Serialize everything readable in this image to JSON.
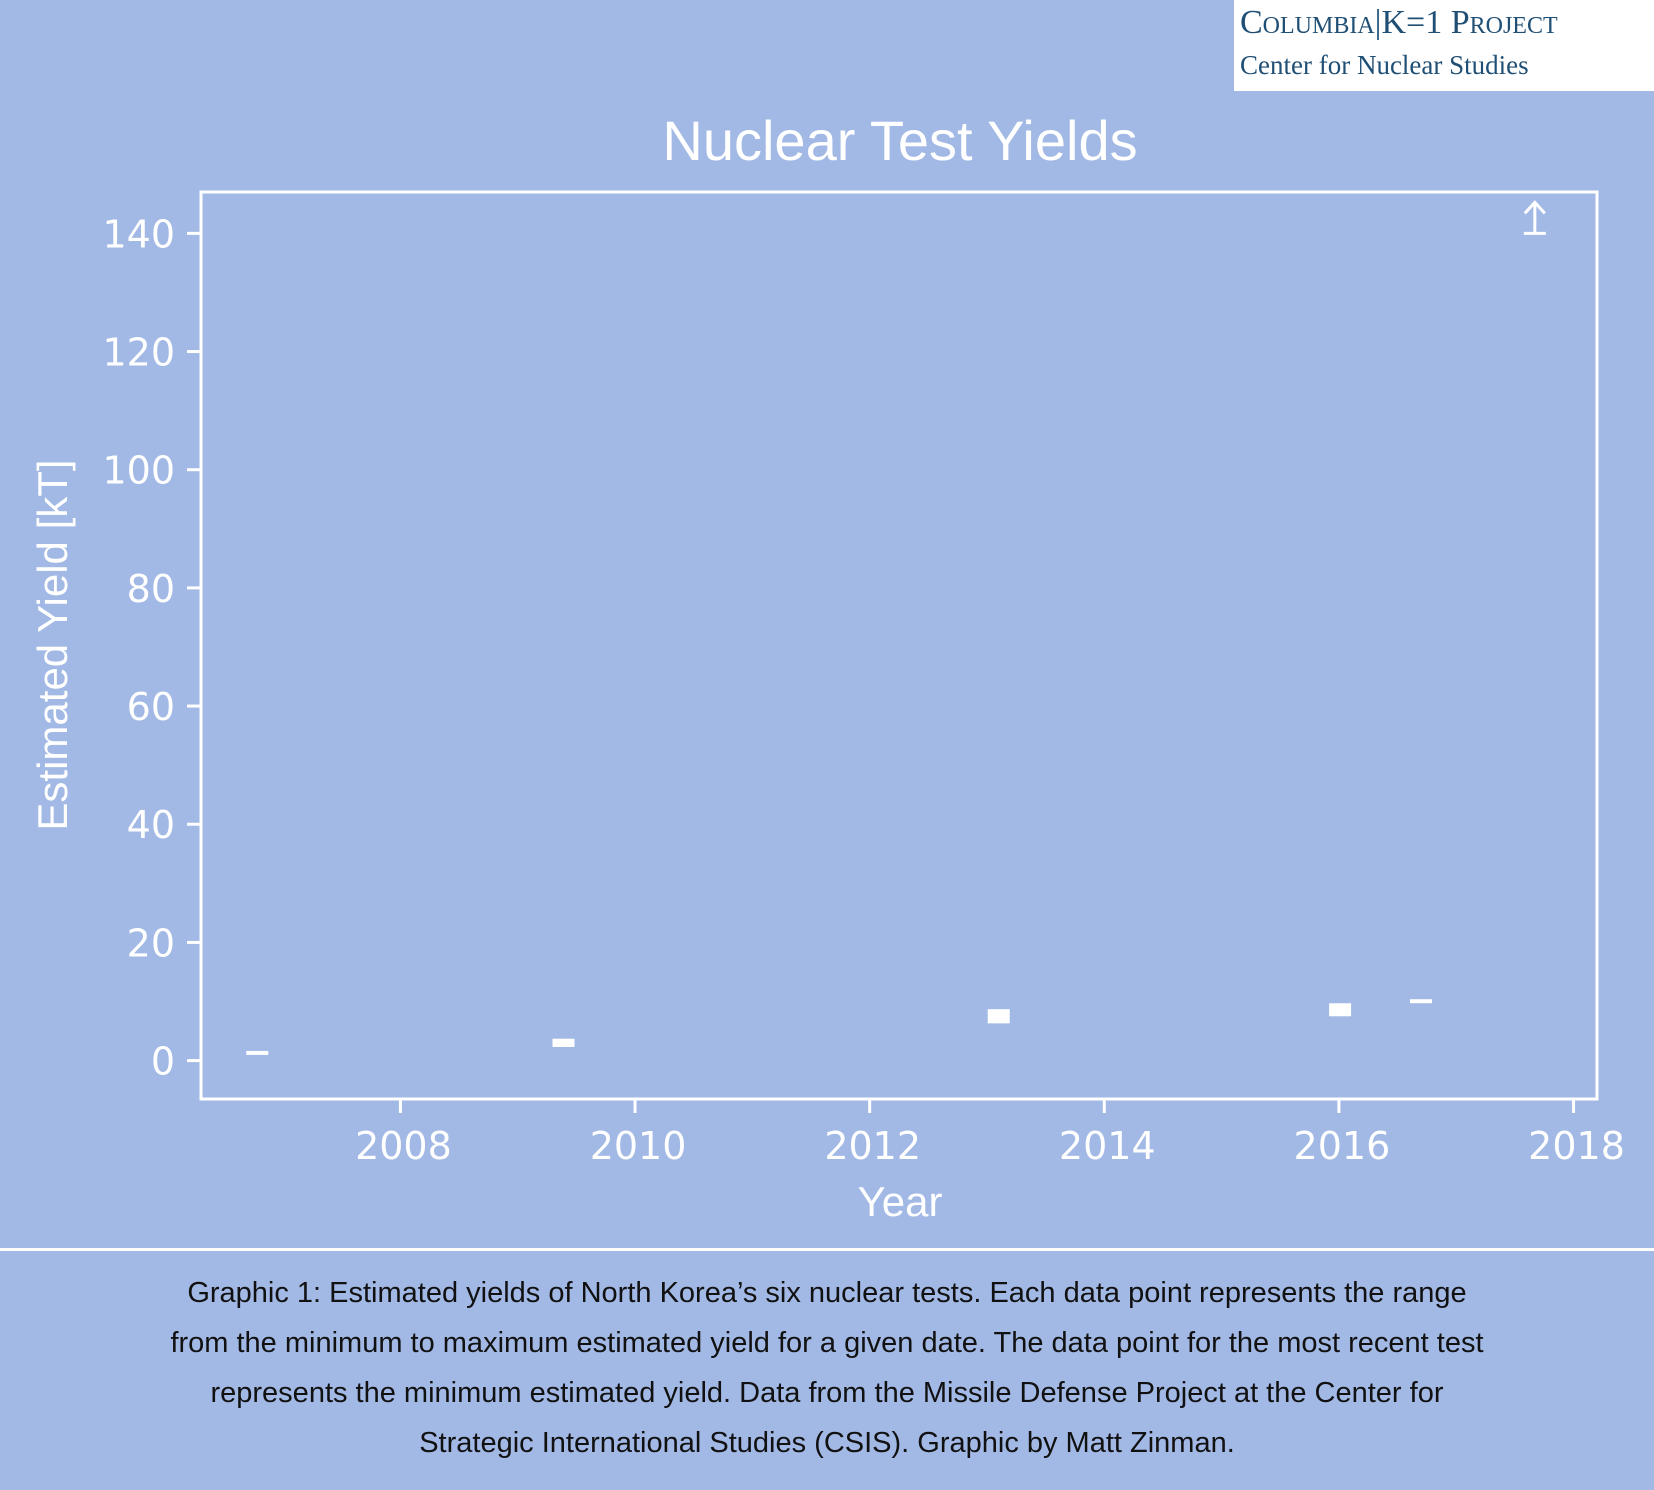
{
  "logo": {
    "line1": "Columbia|K=1 Project",
    "line2": "Center for Nuclear Studies"
  },
  "chart_data": {
    "type": "scatter",
    "title": "Nuclear Test Yields",
    "xlabel": "Year",
    "ylabel": "Estimated Yield [kT]",
    "xlim": [
      2006.3,
      2018.2
    ],
    "ylim": [
      -6.5,
      147
    ],
    "xticks": [
      2008,
      2010,
      2012,
      2014,
      2016,
      2018
    ],
    "yticks": [
      0,
      20,
      40,
      60,
      80,
      100,
      120,
      140
    ],
    "grid": false,
    "series": [
      {
        "points": [
          {
            "x": 2006.78,
            "ymin": 1.0,
            "ymax": 1.6
          },
          {
            "x": 2009.39,
            "ymin": 2.3,
            "ymax": 3.7
          },
          {
            "x": 2013.1,
            "ymin": 6.3,
            "ymax": 8.7
          },
          {
            "x": 2016.01,
            "ymin": 7.5,
            "ymax": 9.7
          },
          {
            "x": 2016.7,
            "ymin": 9.8,
            "ymax": 10.3
          }
        ]
      },
      {
        "marker": "lower-bound-arrow",
        "points": [
          {
            "x": 2017.67,
            "y": 140
          }
        ]
      }
    ],
    "colors": {
      "background": "#a2b9e5",
      "foreground": "#ffffff",
      "caption": "#111111"
    }
  },
  "caption": {
    "lines": [
      "Graphic 1: Estimated yields of North Korea’s six nuclear tests. Each data point represents the range",
      "from the minimum to maximum estimated yield for a given date. The data point for the most recent test",
      "represents the minimum estimated yield.  Data from the Missile Defense Project at the Center for",
      "Strategic International Studies (CSIS). Graphic by Matt Zinman."
    ]
  }
}
